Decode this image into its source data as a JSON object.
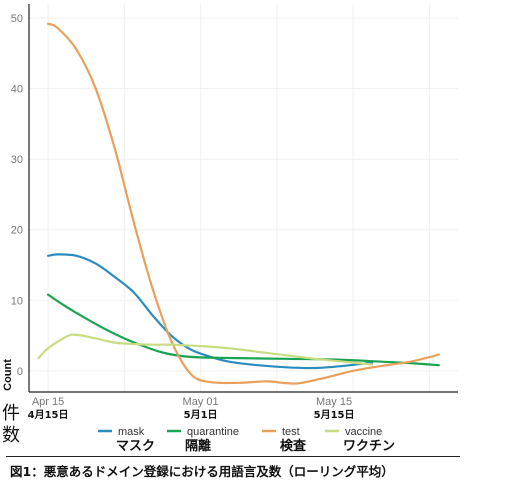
{
  "chart_data": {
    "type": "line",
    "ylabel": "Count",
    "ylabel_jp": [
      "件",
      "数"
    ],
    "ylim": [
      -3,
      52
    ],
    "xlim": [
      "2020-04-13",
      "2020-05-28"
    ],
    "yticks": [
      0,
      10,
      20,
      30,
      40,
      50
    ],
    "xticks": [
      {
        "date": "2020-04-15",
        "label": "Apr 15",
        "label_jp": "4月15日"
      },
      {
        "date": "2020-05-01",
        "label": "May 01",
        "label_jp": "5月1日"
      },
      {
        "date": "2020-05-15",
        "label": "May 15",
        "label_jp": "5月15日"
      }
    ],
    "grid": true,
    "legend_position": "bottom",
    "series": [
      {
        "name": "mask",
        "name_jp": "マスク",
        "color": "#2b8cbe",
        "points": [
          [
            "2020-04-15",
            16.3
          ],
          [
            "2020-04-16",
            16.5
          ],
          [
            "2020-04-18",
            16.3
          ],
          [
            "2020-04-20",
            15.2
          ],
          [
            "2020-04-22",
            13.3
          ],
          [
            "2020-04-24",
            11.1
          ],
          [
            "2020-04-26",
            7.8
          ],
          [
            "2020-04-28",
            4.9
          ],
          [
            "2020-04-30",
            3.0
          ],
          [
            "2020-05-02",
            2.0
          ],
          [
            "2020-05-04",
            1.3
          ],
          [
            "2020-05-07",
            0.8
          ],
          [
            "2020-05-10",
            0.5
          ],
          [
            "2020-05-13",
            0.4
          ],
          [
            "2020-05-16",
            0.7
          ],
          [
            "2020-05-19",
            1.2
          ]
        ]
      },
      {
        "name": "quarantine",
        "name_jp": "隔離",
        "color": "#1aa352",
        "points": [
          [
            "2020-04-15",
            10.8
          ],
          [
            "2020-04-17",
            9.0
          ],
          [
            "2020-04-19",
            7.4
          ],
          [
            "2020-04-21",
            5.9
          ],
          [
            "2020-04-23",
            4.6
          ],
          [
            "2020-04-25",
            3.5
          ],
          [
            "2020-04-27",
            2.6
          ],
          [
            "2020-04-29",
            2.1
          ],
          [
            "2020-05-01",
            1.9
          ],
          [
            "2020-05-05",
            1.8
          ],
          [
            "2020-05-10",
            1.7
          ],
          [
            "2020-05-15",
            1.6
          ],
          [
            "2020-05-20",
            1.3
          ],
          [
            "2020-05-23",
            1.1
          ],
          [
            "2020-05-26",
            0.8
          ]
        ]
      },
      {
        "name": "test",
        "name_jp": "検査",
        "color": "#e8a05c",
        "points": [
          [
            "2020-04-15",
            49.2
          ],
          [
            "2020-04-16",
            48.6
          ],
          [
            "2020-04-18",
            45.5
          ],
          [
            "2020-04-20",
            40.0
          ],
          [
            "2020-04-22",
            31.5
          ],
          [
            "2020-04-24",
            21.0
          ],
          [
            "2020-04-26",
            11.5
          ],
          [
            "2020-04-28",
            4.0
          ],
          [
            "2020-04-30",
            -0.5
          ],
          [
            "2020-05-02",
            -1.6
          ],
          [
            "2020-05-05",
            -1.7
          ],
          [
            "2020-05-08",
            -1.5
          ],
          [
            "2020-05-11",
            -1.8
          ],
          [
            "2020-05-14",
            -1.0
          ],
          [
            "2020-05-17",
            0.0
          ],
          [
            "2020-05-20",
            0.7
          ],
          [
            "2020-05-23",
            1.3
          ],
          [
            "2020-05-26",
            2.3
          ]
        ]
      },
      {
        "name": "vaccine",
        "name_jp": "ワクチン",
        "color": "#c8dc82",
        "points": [
          [
            "2020-04-14",
            1.8
          ],
          [
            "2020-04-15",
            3.2
          ],
          [
            "2020-04-17",
            4.9
          ],
          [
            "2020-04-18",
            5.1
          ],
          [
            "2020-04-20",
            4.6
          ],
          [
            "2020-04-22",
            4.0
          ],
          [
            "2020-04-24",
            3.8
          ],
          [
            "2020-04-26",
            3.7
          ],
          [
            "2020-04-28",
            3.7
          ],
          [
            "2020-05-01",
            3.5
          ],
          [
            "2020-05-04",
            3.2
          ],
          [
            "2020-05-07",
            2.7
          ],
          [
            "2020-05-10",
            2.2
          ],
          [
            "2020-05-13",
            1.7
          ],
          [
            "2020-05-16",
            1.3
          ],
          [
            "2020-05-19",
            0.9
          ]
        ]
      }
    ],
    "caption": "図1：悪意あるドメイン登録における用語言及数（ローリング平均）"
  }
}
